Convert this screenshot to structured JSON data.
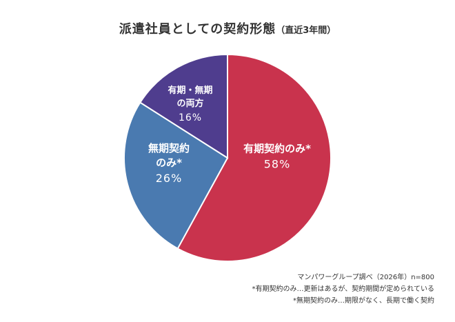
{
  "title": {
    "main": "派遣社員としての契約形態",
    "sub": "（直近3年間）"
  },
  "chart_data": {
    "type": "pie",
    "start_angle": "12 o'clock",
    "direction": "clockwise",
    "slices": [
      {
        "label_lines": [
          "有期契約のみ*"
        ],
        "value": 58,
        "display": "58%",
        "color": "#c9334d"
      },
      {
        "label_lines": [
          "無期契約",
          "のみ*"
        ],
        "value": 26,
        "display": "26%",
        "color": "#4a7ab0"
      },
      {
        "label_lines": [
          "有期・無期",
          "の両方"
        ],
        "value": 16,
        "display": "16%",
        "color": "#4f3d8e"
      }
    ]
  },
  "notes": {
    "source": "マンパワーグループ調べ（2026年）n=800",
    "note1": "*有期契約のみ…更新はあるが、契約期間が定められている",
    "note2": "*無期契約のみ…期限がなく、長期で働く契約"
  }
}
